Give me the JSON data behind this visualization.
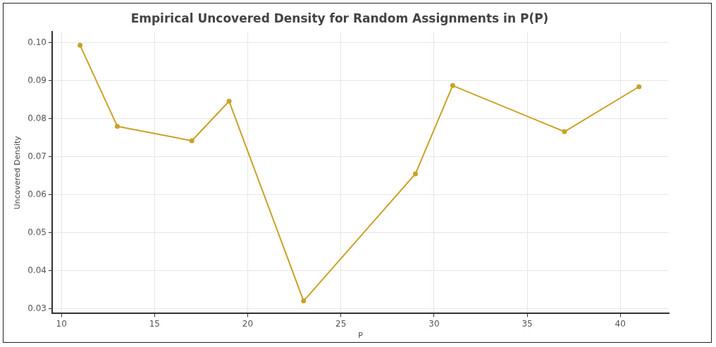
{
  "chart_data": {
    "type": "line",
    "title": "Empirical Uncovered Density for Random Assignments in P(P)",
    "xlabel": "P",
    "ylabel": "Uncovered Density",
    "x": [
      11,
      13,
      17,
      19,
      23,
      29,
      31,
      37,
      41
    ],
    "series": [
      {
        "color": "#c9a227",
        "values": [
          0.0993,
          0.078,
          0.0742,
          0.0846,
          0.0321,
          0.0655,
          0.0887,
          0.0766,
          0.0884
        ]
      }
    ],
    "xlim": [
      9.5,
      42.6
    ],
    "xticks": [
      10,
      15,
      20,
      25,
      30,
      35,
      40
    ],
    "ylim": [
      0.0288,
      0.1028
    ],
    "yticks": [
      {
        "value": 0.03,
        "label": "0.03"
      },
      {
        "value": 0.04,
        "label": "0.04"
      },
      {
        "value": 0.05,
        "label": "0.05"
      },
      {
        "value": 0.06,
        "label": "0.06"
      },
      {
        "value": 0.07,
        "label": "0.07"
      },
      {
        "value": 0.08,
        "label": "0.08"
      },
      {
        "value": 0.09,
        "label": "0.09"
      },
      {
        "value": 0.1,
        "label": "0.10"
      }
    ],
    "grid": true,
    "marker": "circle",
    "line_style": "solid"
  }
}
